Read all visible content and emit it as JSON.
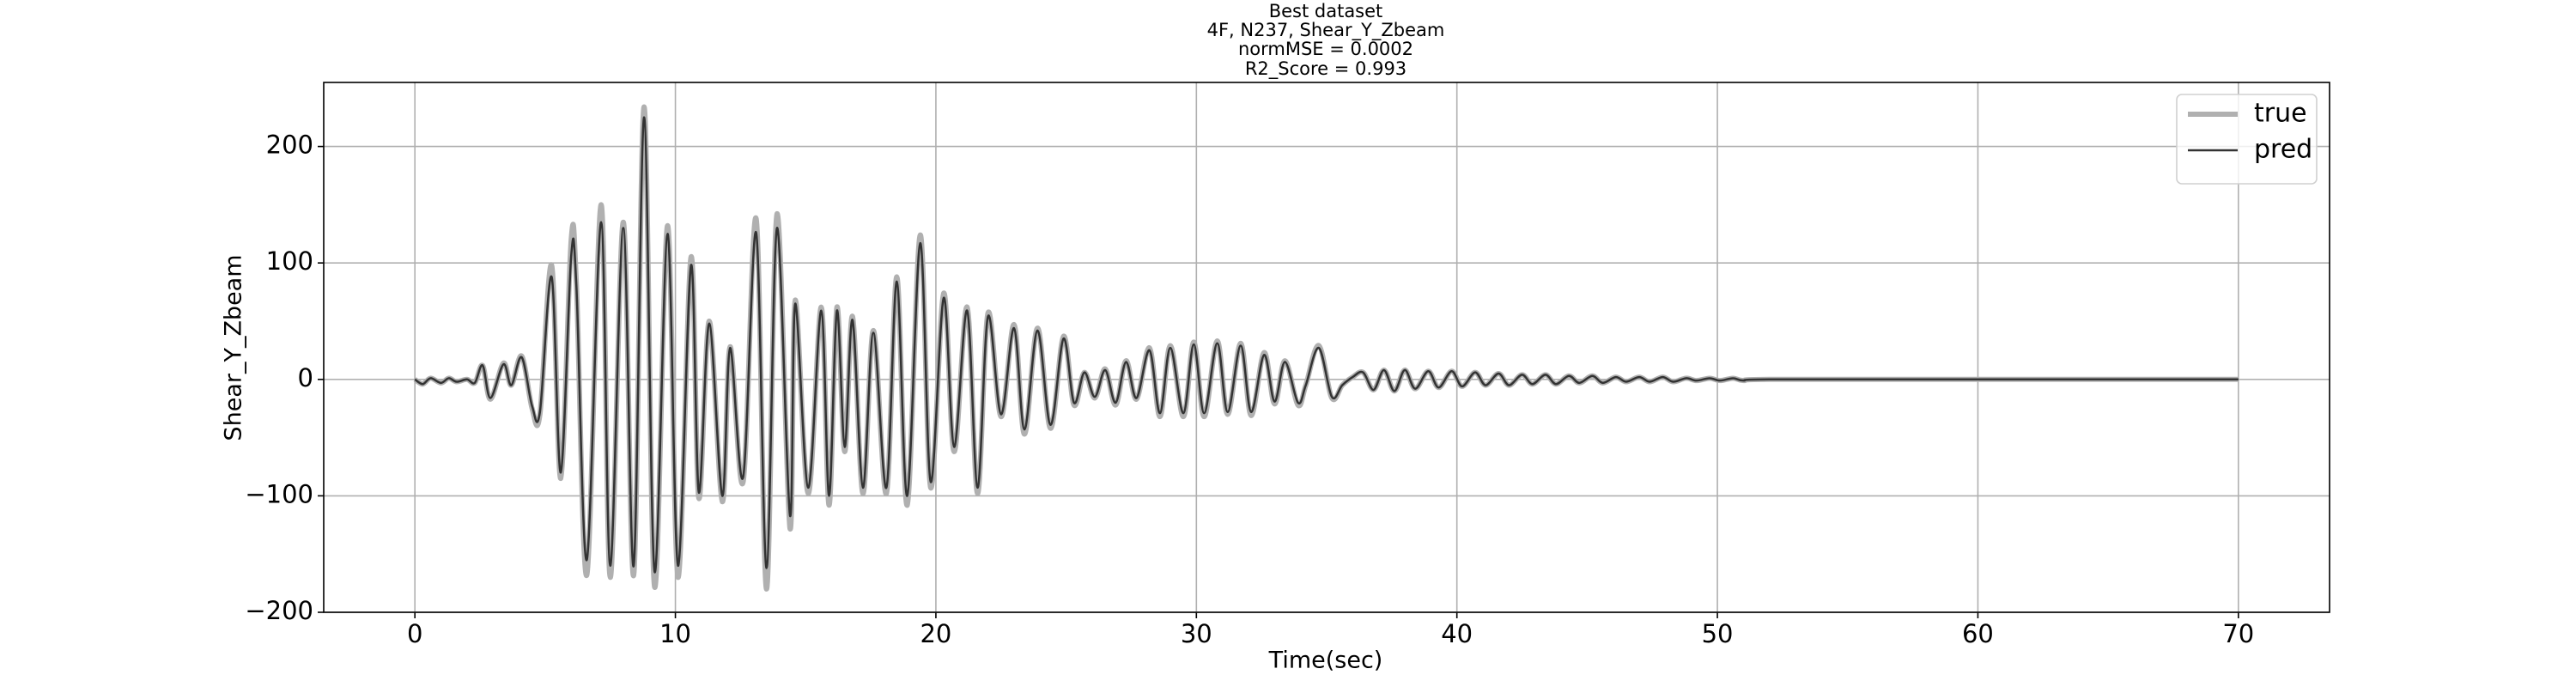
{
  "chart_data": {
    "type": "line",
    "title": [
      "Best dataset",
      "4F, N237, Shear_Y_Zbeam",
      "normMSE = 0.0002",
      "R2_Score = 0.993"
    ],
    "x_label": "Time(sec)",
    "y_label": "Shear_Y_Zbeam",
    "xlim": [
      -3.5,
      73.5
    ],
    "ylim": [
      -200,
      255
    ],
    "xticks": [
      0,
      10,
      20,
      30,
      40,
      50,
      60,
      70
    ],
    "yticks": [
      {
        "value": -200,
        "label": "−200"
      },
      {
        "value": -100,
        "label": "−100"
      },
      0,
      100,
      200
    ],
    "grid": true,
    "legend": "upper right",
    "x": [
      0,
      0.3,
      0.6,
      1.0,
      1.3,
      1.6,
      2.0,
      2.3,
      2.6,
      2.9,
      3.4,
      3.7,
      4.1,
      4.5,
      4.8,
      5.25,
      5.6,
      6.0,
      6.2,
      6.6,
      7.15,
      7.5,
      8.0,
      8.4,
      8.8,
      9.2,
      9.7,
      10.1,
      10.6,
      10.9,
      11.3,
      11.8,
      12.1,
      12.6,
      13.1,
      13.5,
      13.9,
      14.4,
      14.6,
      15.1,
      15.6,
      15.9,
      16.2,
      16.5,
      16.8,
      17.2,
      17.6,
      18.1,
      18.5,
      18.9,
      19.4,
      19.8,
      20.3,
      20.7,
      21.2,
      21.6,
      22.0,
      22.5,
      23.0,
      23.4,
      23.9,
      24.4,
      24.9,
      25.3,
      25.7,
      26.1,
      26.5,
      26.9,
      27.3,
      27.7,
      28.2,
      28.6,
      29.0,
      29.5,
      29.9,
      30.3,
      30.8,
      31.2,
      31.7,
      32.1,
      32.6,
      33.0,
      33.4,
      33.9,
      34.2,
      34.7,
      35.2,
      35.6,
      36.0,
      36.4,
      36.8,
      37.2,
      37.6,
      38.0,
      38.4,
      38.9,
      39.3,
      39.8,
      40.2,
      40.7,
      41.1,
      41.6,
      42.0,
      42.5,
      42.9,
      43.4,
      43.8,
      44.3,
      44.7,
      45.2,
      45.6,
      46.1,
      46.5,
      47.0,
      47.4,
      47.9,
      48.3,
      48.8,
      49.2,
      49.7,
      50.1,
      50.6,
      51.0,
      52,
      60,
      70
    ],
    "series": [
      {
        "name": "true",
        "color": "#b0b0b0",
        "width": 6,
        "values": [
          0,
          -4,
          1,
          -3,
          1,
          -2,
          0,
          -3,
          12,
          -17,
          14,
          -5,
          20,
          -25,
          -30,
          98,
          -85,
          120,
          82,
          -168,
          150,
          -170,
          135,
          -168,
          234,
          -178,
          132,
          -170,
          105,
          -102,
          50,
          -105,
          28,
          -88,
          138,
          -180,
          142,
          -128,
          68,
          -98,
          62,
          -108,
          62,
          -62,
          54,
          -98,
          42,
          -98,
          88,
          -108,
          124,
          -93,
          74,
          -62,
          62,
          -98,
          57,
          -32,
          47,
          -47,
          44,
          -42,
          37,
          -22,
          6,
          -16,
          9,
          -22,
          16,
          -17,
          27,
          -32,
          29,
          -32,
          32,
          -32,
          33,
          -30,
          31,
          -31,
          23,
          -21,
          16,
          -22,
          -5,
          29,
          -16,
          -5,
          2,
          6,
          -9,
          8,
          -10,
          8,
          -8,
          7,
          -7,
          7,
          -6,
          6,
          -5,
          5,
          -5,
          4,
          -4,
          4,
          -4,
          3,
          -3,
          3,
          -3,
          2,
          -2,
          2,
          -2,
          2,
          -2,
          1,
          -1,
          1,
          -1,
          1,
          -1,
          0,
          0,
          0
        ]
      },
      {
        "name": "pred",
        "color": "#333333",
        "width": 2.5,
        "values": [
          0,
          -4,
          1,
          -3,
          1,
          -2,
          0,
          -3,
          12,
          -16,
          13,
          -5,
          19,
          -23,
          -28,
          88,
          -80,
          106,
          80,
          -155,
          135,
          -160,
          130,
          -160,
          225,
          -165,
          125,
          -160,
          98,
          -97,
          48,
          -100,
          27,
          -84,
          126,
          -162,
          130,
          -117,
          65,
          -93,
          59,
          -100,
          59,
          -58,
          51,
          -93,
          40,
          -93,
          84,
          -100,
          117,
          -88,
          70,
          -58,
          59,
          -93,
          54,
          -30,
          44,
          -43,
          42,
          -39,
          35,
          -20,
          6,
          -15,
          8,
          -20,
          15,
          -16,
          25,
          -29,
          27,
          -29,
          30,
          -29,
          31,
          -28,
          29,
          -28,
          21,
          -19,
          15,
          -20,
          -5,
          27,
          -15,
          -5,
          2,
          6,
          -9,
          8,
          -10,
          8,
          -8,
          7,
          -7,
          7,
          -6,
          6,
          -5,
          5,
          -5,
          4,
          -4,
          4,
          -4,
          3,
          -3,
          3,
          -3,
          2,
          -2,
          2,
          -2,
          2,
          -2,
          1,
          -1,
          1,
          -1,
          1,
          -1,
          0,
          0,
          0
        ]
      }
    ]
  }
}
